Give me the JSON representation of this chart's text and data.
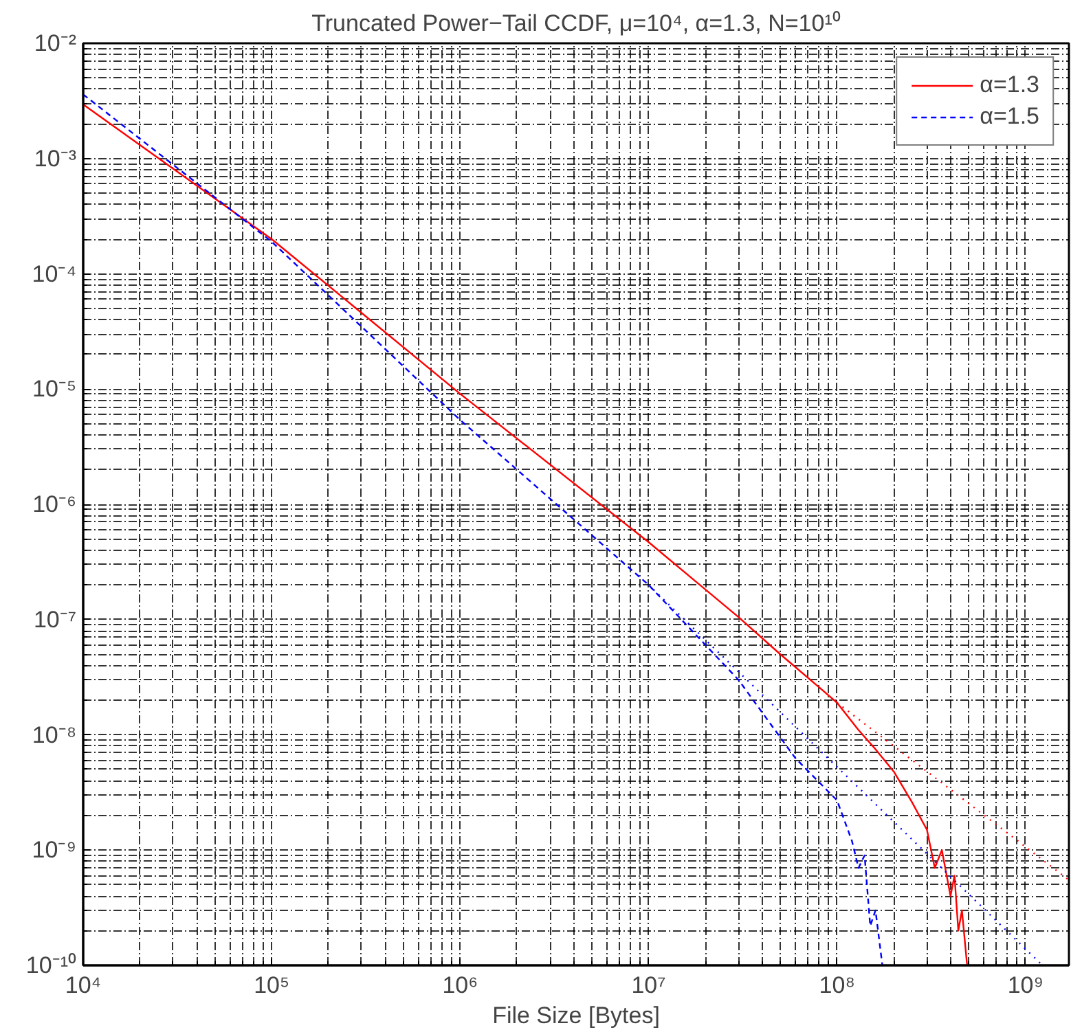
{
  "chart_data": {
    "type": "line",
    "title": "Truncated Power−Tail CCDF, μ=10⁴, α=1.3, N=10¹⁰",
    "xlabel": "File Size [Bytes]",
    "log": "xy",
    "grid": true,
    "legend": "top right",
    "marker": "none",
    "xlim": [
      10000,
      1700000000
    ],
    "ylim": [
      1e-10,
      0.01
    ],
    "xticks": [
      {
        "value": 10000,
        "label": "10⁴"
      },
      {
        "value": 100000,
        "label": "10⁵"
      },
      {
        "value": 1000000,
        "label": "10⁶"
      },
      {
        "value": 10000000,
        "label": "10⁷"
      },
      {
        "value": 100000000,
        "label": "10⁸"
      },
      {
        "value": 1000000000,
        "label": "10⁹"
      }
    ],
    "yticks": [
      {
        "value": 1e-10,
        "label": "10⁻¹⁰"
      },
      {
        "value": 1e-09,
        "label": "10⁻⁹"
      },
      {
        "value": 1e-08,
        "label": "10⁻⁸"
      },
      {
        "value": 1e-07,
        "label": "10⁻⁷"
      },
      {
        "value": 1e-06,
        "label": "10⁻⁶"
      },
      {
        "value": 1e-05,
        "label": "10⁻⁵"
      },
      {
        "value": 0.0001,
        "label": "10⁻⁴"
      },
      {
        "value": 0.001,
        "label": "10⁻³"
      },
      {
        "value": 0.01,
        "label": "10⁻²"
      }
    ],
    "series": [
      {
        "name": "α=1.3",
        "color": "#ff0000",
        "line_style": "solid",
        "x": [
          10000,
          100000,
          1000000,
          10000000,
          30000000,
          50000000,
          80000000,
          100000000,
          130000000,
          160000000,
          200000000,
          250000000,
          300000000,
          330000000,
          360000000,
          400000000,
          420000000,
          440000000,
          460000000,
          490000000
        ],
        "values": [
          0.00295,
          0.0002,
          9.1e-06,
          4.7e-07,
          1.05e-07,
          5e-08,
          2.6e-08,
          1.9e-08,
          1.1e-08,
          7.5e-09,
          4.8e-09,
          2.6e-09,
          1.5e-09,
          7e-10,
          1e-09,
          4e-10,
          6e-10,
          2e-10,
          3e-10,
          1e-10
        ]
      },
      {
        "name": "α=1.5",
        "color": "#0000ff",
        "line_style": "dashed",
        "x": [
          10000,
          100000,
          1000000,
          10000000,
          30000000,
          60000000,
          100000000,
          120000000,
          130000000,
          140000000,
          150000000,
          160000000,
          174000000
        ],
        "values": [
          0.0036,
          0.00019,
          5.4e-06,
          2e-07,
          3e-08,
          6.3e-09,
          2.7e-09,
          1.2e-09,
          7e-10,
          9e-10,
          2.2e-10,
          3e-10,
          1e-10
        ]
      },
      {
        "color": "#ff0000",
        "line_style": "dotted",
        "x": [
          100000000,
          1700000000
        ],
        "values": [
          1.9e-08,
          5.5e-10
        ]
      },
      {
        "color": "#0000ff",
        "line_style": "dotted",
        "x": [
          10000000,
          1230000000
        ],
        "values": [
          2e-07,
          1e-10
        ]
      }
    ]
  }
}
